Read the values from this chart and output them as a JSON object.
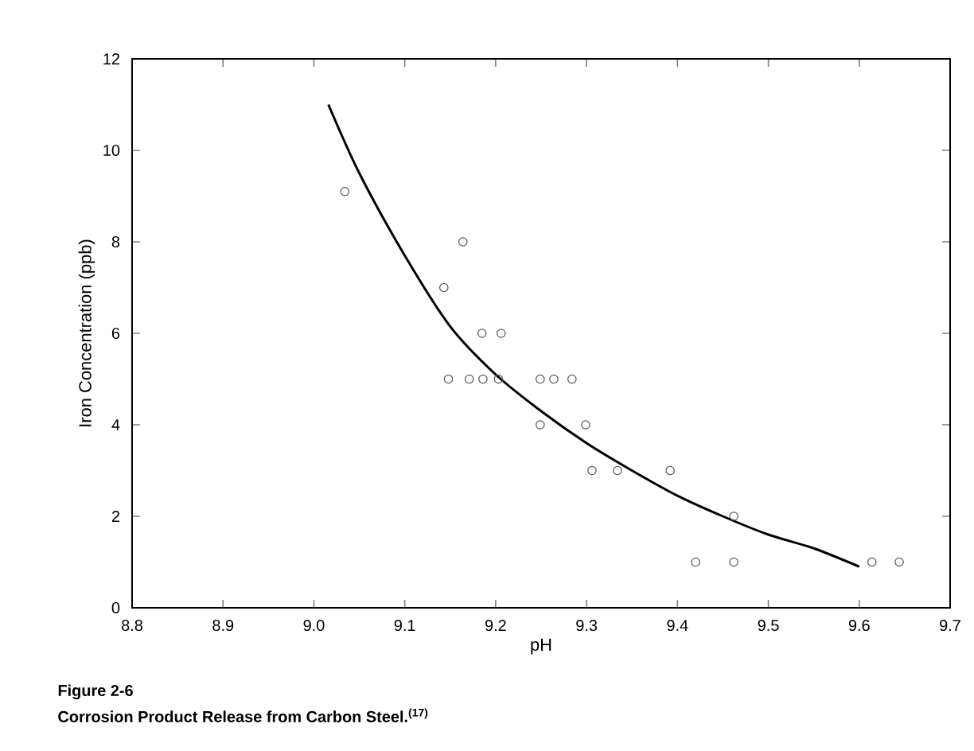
{
  "chart_data": {
    "type": "scatter",
    "title": "Figure 2-6",
    "subtitle": "Corrosion Product Release from Carbon Steel.$^{(17)}$",
    "xlabel": "pH",
    "ylabel": "Iron Concentration (ppb)",
    "xlim": [
      8.8,
      9.7
    ],
    "ylim": [
      0,
      12
    ],
    "xticks": [
      8.8,
      8.9,
      {
        "value": 9,
        "label": "9.0"
      },
      9.1,
      9.2,
      9.3,
      9.4,
      9.5,
      9.6,
      9.7
    ],
    "yticks": [
      0,
      2,
      4,
      6,
      8,
      10,
      12
    ],
    "grid": false,
    "marker": "circle",
    "series": [
      {
        "color": "#555555",
        "x": [
          9.034,
          9.164,
          9.143,
          9.148,
          9.171,
          9.185,
          9.186,
          9.206,
          9.203,
          9.249,
          9.249,
          9.264,
          9.284,
          9.299,
          9.306,
          9.334,
          9.392,
          9.42,
          9.462,
          9.462,
          9.614,
          9.644
        ],
        "values": [
          9.1,
          8,
          7,
          5,
          5,
          6,
          5,
          6,
          5,
          5,
          4,
          5,
          5,
          4,
          3,
          3,
          3,
          1,
          1,
          2,
          1,
          1
        ]
      },
      {
        "type": "line",
        "color": "#000000",
        "marker": "none",
        "line_style": "solid",
        "x": [
          9.016,
          9.05,
          9.1,
          9.15,
          9.2,
          9.25,
          9.3,
          9.35,
          9.4,
          9.45,
          9.5,
          9.55,
          9.6
        ],
        "values": [
          11,
          9.5,
          7.7,
          6.15,
          5.1,
          4.3,
          3.6,
          3,
          2.45,
          2,
          1.6,
          1.3,
          0.9
        ]
      }
    ]
  }
}
